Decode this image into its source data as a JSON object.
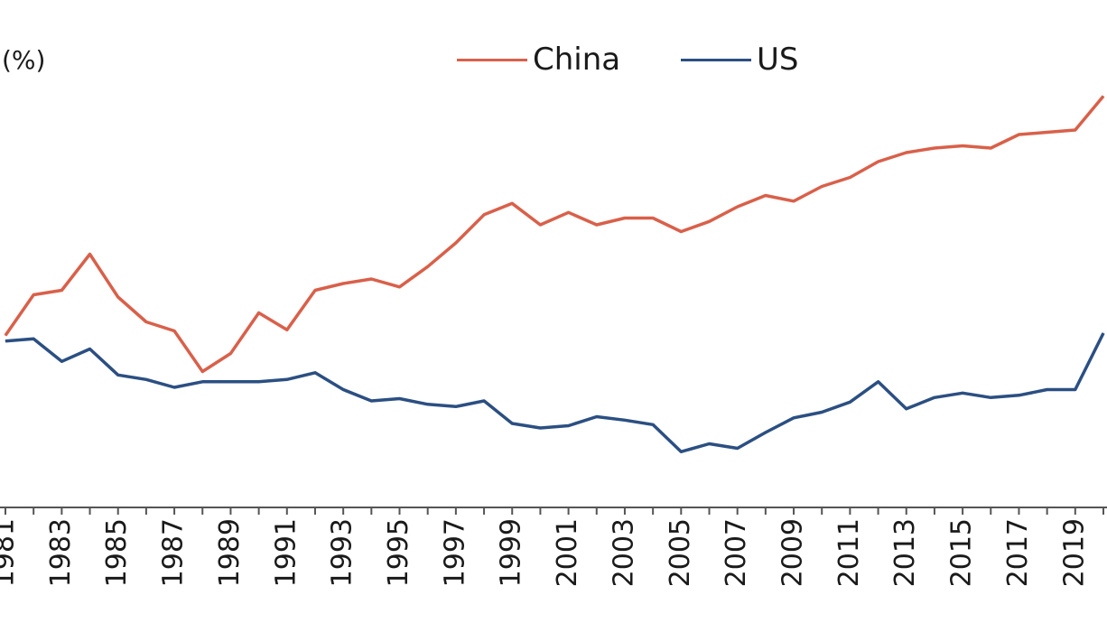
{
  "chart_data": {
    "type": "line",
    "title": "",
    "ylabel": "(%)",
    "xlabel": "",
    "x": [
      1981,
      1982,
      1983,
      1984,
      1985,
      1986,
      1987,
      1988,
      1989,
      1990,
      1991,
      1992,
      1993,
      1994,
      1995,
      1996,
      1997,
      1998,
      1999,
      2000,
      2001,
      2002,
      2003,
      2004,
      2005,
      2006,
      2007,
      2008,
      2009,
      2010,
      2011,
      2012,
      2013,
      2014,
      2015,
      2016,
      2017,
      2018,
      2019,
      2020
    ],
    "tick_labels": [
      "1981",
      "1983",
      "1985",
      "1987",
      "1989",
      "1991",
      "1993",
      "1995",
      "1997",
      "1999",
      "2001",
      "2003",
      "2005",
      "2007",
      "2009",
      "2011",
      "2013",
      "2015",
      "2017",
      "2019"
    ],
    "series": [
      {
        "name": "China",
        "color": "#d9604a",
        "values": [
          19.4,
          23.0,
          23.4,
          26.6,
          22.8,
          20.6,
          19.8,
          16.2,
          17.8,
          21.4,
          19.9,
          23.4,
          24.0,
          24.4,
          23.7,
          25.5,
          27.6,
          30.1,
          31.1,
          29.2,
          30.3,
          29.2,
          29.8,
          29.8,
          28.6,
          29.5,
          30.8,
          31.8,
          31.3,
          32.6,
          33.4,
          34.8,
          35.6,
          36.0,
          36.2,
          36.0,
          37.2,
          37.4,
          37.6,
          40.6
        ]
      },
      {
        "name": "US",
        "color": "#2b4f82",
        "values": [
          18.9,
          19.1,
          17.1,
          18.2,
          15.9,
          15.5,
          14.8,
          15.3,
          15.3,
          15.3,
          15.5,
          16.1,
          14.6,
          13.6,
          13.8,
          13.3,
          13.1,
          13.6,
          11.6,
          11.2,
          11.4,
          12.2,
          11.9,
          11.5,
          9.1,
          9.8,
          9.4,
          10.8,
          12.1,
          12.6,
          13.5,
          15.3,
          12.9,
          13.9,
          14.3,
          13.9,
          14.1,
          14.6,
          14.6,
          19.6
        ]
      }
    ],
    "legend_position": "top-center",
    "grid": false
  }
}
